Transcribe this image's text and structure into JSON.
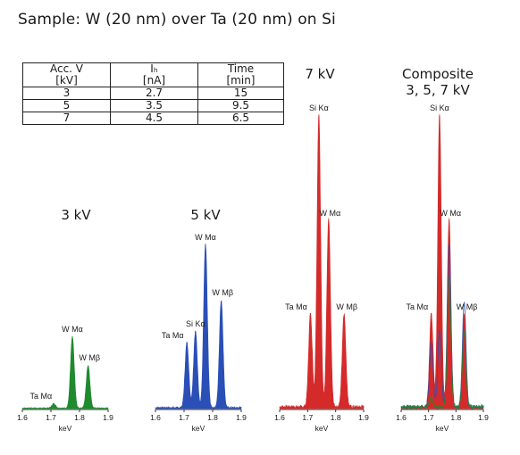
{
  "title": "Sample: W (20 nm) over Ta (20 nm) on Si",
  "table": {
    "headers": [
      [
        "Acc. V",
        "[kV]"
      ],
      [
        "Iₕ",
        "[nA]"
      ],
      [
        "Time",
        "[min]"
      ]
    ],
    "rows": [
      [
        "3",
        "2.7",
        "15"
      ],
      [
        "5",
        "3.5",
        "9.5"
      ],
      [
        "7",
        "4.5",
        "6.5"
      ]
    ]
  },
  "chart_data": [
    {
      "type": "area",
      "title": "3 kV",
      "color": "#1f8a2e",
      "xlabel": "keV",
      "xlim": [
        1.6,
        1.9
      ],
      "xticks": [
        "1.6",
        "1.7",
        "1.8",
        "1.9"
      ],
      "ylim": [
        0,
        100
      ],
      "peaks": [
        {
          "x": 1.71,
          "y": 5
        },
        {
          "x": 1.775,
          "y": 80
        },
        {
          "x": 1.83,
          "y": 48
        }
      ],
      "labels": [
        {
          "text": "Ta Mα",
          "x": 1.71,
          "y": 5
        },
        {
          "text": "W Mα",
          "x": 1.775,
          "y": 80
        },
        {
          "text": "W Mβ",
          "x": 1.835,
          "y": 48
        }
      ]
    },
    {
      "type": "area",
      "title": "5 kV",
      "color": "#2a4fb6",
      "xlabel": "keV",
      "xlim": [
        1.6,
        1.9
      ],
      "xticks": [
        "1.6",
        "1.7",
        "1.8",
        "1.9"
      ],
      "ylim": [
        0,
        100
      ],
      "peaks": [
        {
          "x": 1.71,
          "y": 40
        },
        {
          "x": 1.74,
          "y": 47
        },
        {
          "x": 1.775,
          "y": 100
        },
        {
          "x": 1.83,
          "y": 66
        }
      ],
      "labels": [
        {
          "text": "Ta Mα",
          "x": 1.705,
          "y": 40
        },
        {
          "text": "Si Kα",
          "x": 1.74,
          "y": 47
        },
        {
          "text": "W Mα",
          "x": 1.775,
          "y": 100
        },
        {
          "text": "W Mβ",
          "x": 1.835,
          "y": 66
        }
      ]
    },
    {
      "type": "area",
      "title": "7 kV",
      "color": "#d42a2a",
      "xlabel": "keV",
      "xlim": [
        1.6,
        1.9
      ],
      "xticks": [
        "1.6",
        "1.7",
        "1.8",
        "1.9"
      ],
      "ylim": [
        0,
        100
      ],
      "peaks": [
        {
          "x": 1.71,
          "y": 32
        },
        {
          "x": 1.74,
          "y": 100
        },
        {
          "x": 1.775,
          "y": 64
        },
        {
          "x": 1.83,
          "y": 32
        }
      ],
      "labels": [
        {
          "text": "Ta Mα",
          "x": 1.705,
          "y": 32
        },
        {
          "text": "Si Kα",
          "x": 1.74,
          "y": 100
        },
        {
          "text": "W Mα",
          "x": 1.78,
          "y": 64
        },
        {
          "text": "W Mβ",
          "x": 1.84,
          "y": 32
        }
      ]
    },
    {
      "type": "area",
      "title": "Composite\n3, 5, 7 kV",
      "color": "#d42a2a",
      "xlabel": "keV",
      "xlim": [
        1.6,
        1.9
      ],
      "xticks": [
        "1.6",
        "1.7",
        "1.8",
        "1.9"
      ],
      "ylim": [
        0,
        100
      ],
      "peaks": [
        {
          "x": 1.71,
          "y": 32
        },
        {
          "x": 1.74,
          "y": 100
        },
        {
          "x": 1.775,
          "y": 64
        },
        {
          "x": 1.83,
          "y": 32
        }
      ],
      "overlays": [
        {
          "color": "#2a4fb6",
          "peaks": [
            {
              "x": 1.71,
              "y": 22
            },
            {
              "x": 1.74,
              "y": 26
            },
            {
              "x": 1.775,
              "y": 55
            },
            {
              "x": 1.83,
              "y": 36
            }
          ]
        },
        {
          "color": "#1f8a2e",
          "peaks": [
            {
              "x": 1.71,
              "y": 3
            },
            {
              "x": 1.775,
              "y": 44
            },
            {
              "x": 1.83,
              "y": 26
            }
          ]
        }
      ],
      "labels": [
        {
          "text": "Ta Mα",
          "x": 1.705,
          "y": 32
        },
        {
          "text": "Si Kα",
          "x": 1.74,
          "y": 100
        },
        {
          "text": "W Mα",
          "x": 1.78,
          "y": 64
        },
        {
          "text": "W Mβ",
          "x": 1.84,
          "y": 32
        }
      ]
    }
  ]
}
